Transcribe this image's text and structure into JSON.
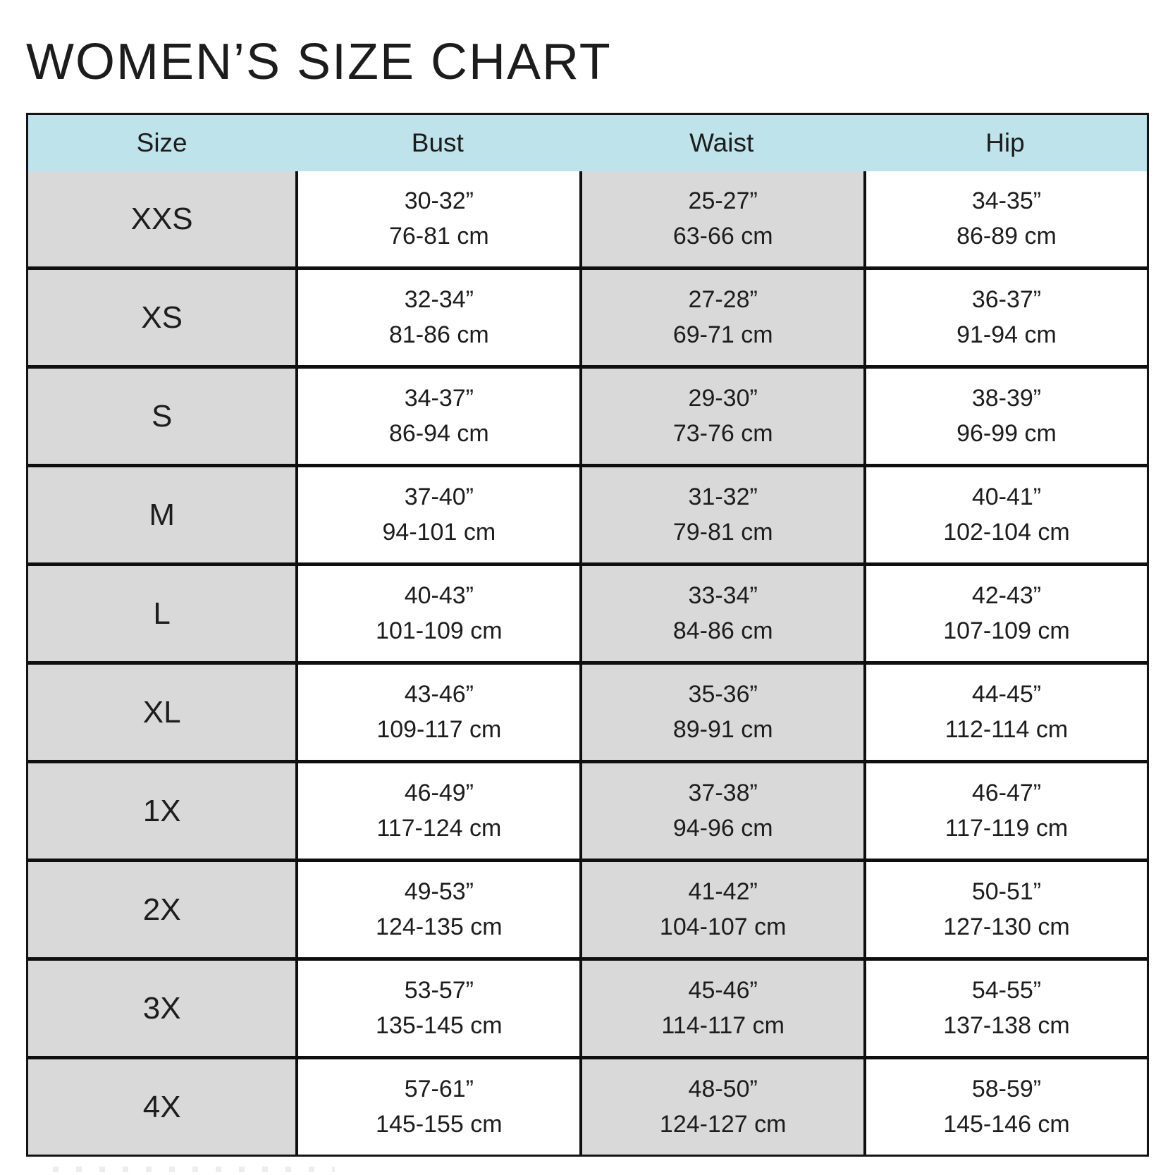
{
  "title": "WOMEN’S SIZE CHART",
  "table": {
    "headers": [
      "Size",
      "Bust",
      "Waist",
      "Hip"
    ],
    "rows": [
      {
        "size": "XXS",
        "bust_in": "30-32”",
        "bust_cm": "76-81 cm",
        "waist_in": "25-27”",
        "waist_cm": "63-66 cm",
        "hip_in": "34-35”",
        "hip_cm": "86-89 cm"
      },
      {
        "size": "XS",
        "bust_in": "32-34”",
        "bust_cm": "81-86 cm",
        "waist_in": "27-28”",
        "waist_cm": "69-71 cm",
        "hip_in": "36-37”",
        "hip_cm": "91-94 cm"
      },
      {
        "size": "S",
        "bust_in": "34-37”",
        "bust_cm": "86-94 cm",
        "waist_in": "29-30”",
        "waist_cm": "73-76 cm",
        "hip_in": "38-39”",
        "hip_cm": "96-99 cm"
      },
      {
        "size": "M",
        "bust_in": "37-40”",
        "bust_cm": "94-101 cm",
        "waist_in": "31-32”",
        "waist_cm": "79-81 cm",
        "hip_in": "40-41”",
        "hip_cm": "102-104 cm"
      },
      {
        "size": "L",
        "bust_in": "40-43”",
        "bust_cm": "101-109 cm",
        "waist_in": "33-34”",
        "waist_cm": "84-86 cm",
        "hip_in": "42-43”",
        "hip_cm": "107-109 cm"
      },
      {
        "size": "XL",
        "bust_in": "43-46”",
        "bust_cm": "109-117 cm",
        "waist_in": "35-36”",
        "waist_cm": "89-91 cm",
        "hip_in": "44-45”",
        "hip_cm": "112-114 cm"
      },
      {
        "size": "1X",
        "bust_in": "46-49”",
        "bust_cm": "117-124 cm",
        "waist_in": "37-38”",
        "waist_cm": "94-96 cm",
        "hip_in": "46-47”",
        "hip_cm": "117-119 cm"
      },
      {
        "size": "2X",
        "bust_in": "49-53”",
        "bust_cm": "124-135 cm",
        "waist_in": "41-42”",
        "waist_cm": "104-107 cm",
        "hip_in": "50-51”",
        "hip_cm": "127-130 cm"
      },
      {
        "size": "3X",
        "bust_in": "53-57”",
        "bust_cm": "135-145 cm",
        "waist_in": "45-46”",
        "waist_cm": "114-117 cm",
        "hip_in": "54-55”",
        "hip_cm": "137-138 cm"
      },
      {
        "size": "4X",
        "bust_in": "57-61”",
        "bust_cm": "145-155 cm",
        "waist_in": "48-50”",
        "waist_cm": "124-127 cm",
        "hip_in": "58-59”",
        "hip_cm": "145-146 cm"
      }
    ]
  },
  "colors": {
    "header_bg": "#bee3eb",
    "shaded_cell_bg": "#d9d9d9",
    "grid_border": "#0f0f0f",
    "text": "#1d1d1d",
    "background": "#ffffff"
  },
  "chart_data": {
    "type": "table",
    "title": "WOMEN’S SIZE CHART",
    "columns": [
      "Size",
      "Bust",
      "Waist",
      "Hip"
    ],
    "units": [
      "",
      "inches / cm",
      "inches / cm",
      "inches / cm"
    ],
    "rows": [
      [
        "XXS",
        "30-32” / 76-81 cm",
        "25-27” / 63-66 cm",
        "34-35” / 86-89 cm"
      ],
      [
        "XS",
        "32-34” / 81-86 cm",
        "27-28” / 69-71 cm",
        "36-37” / 91-94 cm"
      ],
      [
        "S",
        "34-37” / 86-94 cm",
        "29-30” / 73-76 cm",
        "38-39” / 96-99 cm"
      ],
      [
        "M",
        "37-40” / 94-101 cm",
        "31-32” / 79-81 cm",
        "40-41” / 102-104 cm"
      ],
      [
        "L",
        "40-43” / 101-109 cm",
        "33-34” / 84-86 cm",
        "42-43” / 107-109 cm"
      ],
      [
        "XL",
        "43-46” / 109-117 cm",
        "35-36” / 89-91 cm",
        "44-45” / 112-114 cm"
      ],
      [
        "1X",
        "46-49” / 117-124 cm",
        "37-38” / 94-96 cm",
        "46-47” / 117-119 cm"
      ],
      [
        "2X",
        "49-53” / 124-135 cm",
        "41-42” / 104-107 cm",
        "50-51” / 127-130 cm"
      ],
      [
        "3X",
        "53-57” / 135-145 cm",
        "45-46” / 114-117 cm",
        "54-55” / 137-138 cm"
      ],
      [
        "4X",
        "57-61” / 145-155 cm",
        "48-50” / 124-127 cm",
        "58-59” / 145-146 cm"
      ]
    ]
  }
}
